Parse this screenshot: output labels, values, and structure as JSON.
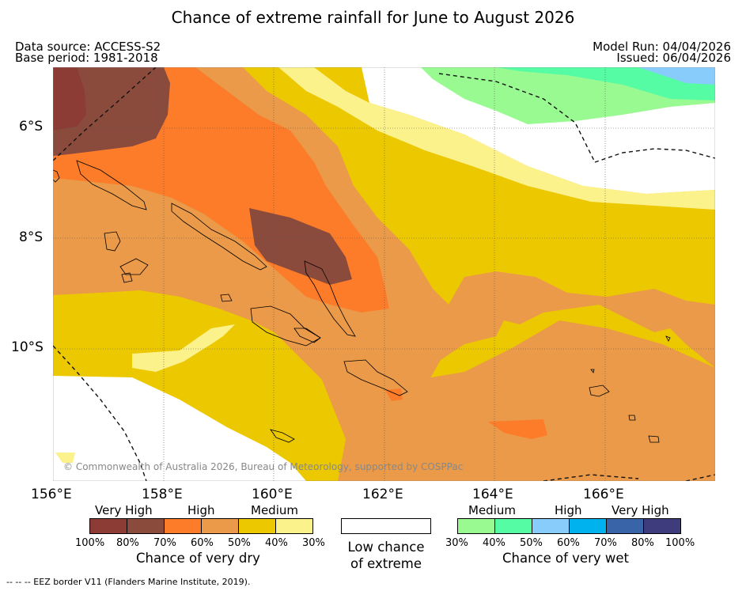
{
  "title": "Chance of extreme rainfall for June to August 2026",
  "meta": {
    "data_source": "Data source: ACCESS-S2",
    "base_period": "Base period: 1981-2018",
    "model_run": "Model Run: 04/04/2026",
    "issued": "Issued: 06/04/2026"
  },
  "map": {
    "lat_labels": [
      "6°S",
      "8°S",
      "10°S"
    ],
    "lon_labels": [
      "156°E",
      "158°E",
      "160°E",
      "162°E",
      "164°E",
      "166°E"
    ],
    "copyright": "© Commonwealth of Australia 2026, Bureau of Meteorology, supported by COSPPac"
  },
  "legend": {
    "dry": {
      "categories": [
        "Very High",
        "High",
        "Medium"
      ],
      "percentages": [
        "100%",
        "80%",
        "70%",
        "60%",
        "50%",
        "40%",
        "30%"
      ],
      "colors": [
        "#8c3c34",
        "#8a4b3c",
        "#fc7c2a",
        "#ea9a48",
        "#ecc800",
        "#fcf28c"
      ],
      "caption": "Chance of very dry"
    },
    "low": {
      "line1": "Low chance",
      "line2": "of extreme",
      "color": "#ffffff"
    },
    "wet": {
      "categories": [
        "Medium",
        "High",
        "Very High"
      ],
      "percentages": [
        "30%",
        "40%",
        "50%",
        "60%",
        "70%",
        "80%",
        "100%"
      ],
      "colors": [
        "#98fa90",
        "#56fca4",
        "#88ccfc",
        "#00b2ee",
        "#3a64a8",
        "#3e3c7c"
      ],
      "caption": "Chance of very wet"
    }
  },
  "footer": "--  --  -- EEZ border V11 (Flanders Marine Institute, 2019)."
}
